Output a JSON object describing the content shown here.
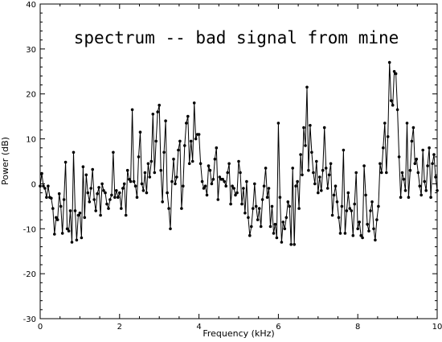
{
  "chart_data": {
    "type": "line",
    "title": "spectrum -- bad signal from mine",
    "xlabel": "Frequency (kHz)",
    "ylabel": "Power (dB)",
    "xlim": [
      0,
      10
    ],
    "ylim": [
      -30,
      40
    ],
    "grid": false,
    "legend": "none",
    "line_color": "#000000",
    "marker": "filled-circle",
    "x_ticks": [
      0,
      2,
      4,
      6,
      8,
      10
    ],
    "y_ticks": [
      -30,
      -20,
      -10,
      0,
      10,
      20,
      30,
      40
    ],
    "x_tick_labels": [
      "0",
      "2",
      "4",
      "6",
      "8",
      "10"
    ],
    "y_tick_labels": [
      "-30",
      "-20",
      "-10",
      "0",
      "10",
      "20",
      "30",
      "40"
    ],
    "series": [
      {
        "x": [
          0.0,
          0.04,
          0.08,
          0.12,
          0.16,
          0.2,
          0.24,
          0.28,
          0.32,
          0.36,
          0.4,
          0.44,
          0.48,
          0.52,
          0.56,
          0.6,
          0.64,
          0.68,
          0.72,
          0.76,
          0.8,
          0.84,
          0.88,
          0.92,
          0.96,
          1.0,
          1.04,
          1.08,
          1.12,
          1.16,
          1.2,
          1.24,
          1.28,
          1.32,
          1.36,
          1.4,
          1.44,
          1.48,
          1.52,
          1.56,
          1.6,
          1.64,
          1.68,
          1.72,
          1.76,
          1.8,
          1.84,
          1.88,
          1.92,
          1.96,
          2.0,
          2.04,
          2.08,
          2.12,
          2.16,
          2.2,
          2.24,
          2.28,
          2.32,
          2.36,
          2.4,
          2.44,
          2.48,
          2.52,
          2.56,
          2.6,
          2.64,
          2.68,
          2.72,
          2.76,
          2.8,
          2.84,
          2.88,
          2.92,
          2.96,
          3.0,
          3.04,
          3.08,
          3.12,
          3.16,
          3.2,
          3.24,
          3.28,
          3.32,
          3.36,
          3.4,
          3.44,
          3.48,
          3.52,
          3.56,
          3.6,
          3.64,
          3.68,
          3.72,
          3.76,
          3.8,
          3.84,
          3.88,
          3.92,
          3.96,
          4.0,
          4.04,
          4.08,
          4.12,
          4.16,
          4.2,
          4.24,
          4.28,
          4.32,
          4.36,
          4.4,
          4.44,
          4.48,
          4.52,
          4.56,
          4.6,
          4.64,
          4.68,
          4.72,
          4.76,
          4.8,
          4.84,
          4.88,
          4.92,
          4.96,
          5.0,
          5.04,
          5.08,
          5.12,
          5.16,
          5.2,
          5.24,
          5.28,
          5.32,
          5.36,
          5.4,
          5.44,
          5.48,
          5.52,
          5.56,
          5.6,
          5.64,
          5.68,
          5.72,
          5.76,
          5.8,
          5.84,
          5.88,
          5.92,
          5.96,
          6.0,
          6.04,
          6.08,
          6.12,
          6.16,
          6.2,
          6.24,
          6.28,
          6.32,
          6.36,
          6.4,
          6.44,
          6.48,
          6.52,
          6.56,
          6.6,
          6.64,
          6.68,
          6.72,
          6.76,
          6.8,
          6.84,
          6.88,
          6.92,
          6.96,
          7.0,
          7.04,
          7.08,
          7.12,
          7.16,
          7.2,
          7.24,
          7.28,
          7.32,
          7.36,
          7.4,
          7.44,
          7.48,
          7.52,
          7.56,
          7.6,
          7.64,
          7.68,
          7.72,
          7.76,
          7.8,
          7.84,
          7.88,
          7.92,
          7.96,
          8.0,
          8.04,
          8.08,
          8.12,
          8.16,
          8.2,
          8.24,
          8.28,
          8.32,
          8.36,
          8.4,
          8.44,
          8.48,
          8.52,
          8.56,
          8.6,
          8.64,
          8.68,
          8.72,
          8.76,
          8.8,
          8.84,
          8.88,
          8.92,
          8.96,
          9.0,
          9.04,
          9.08,
          9.12,
          9.16,
          9.2,
          9.24,
          9.28,
          9.32,
          9.36,
          9.4,
          9.44,
          9.48,
          9.52,
          9.56,
          9.6,
          9.64,
          9.68,
          9.72,
          9.76,
          9.8,
          9.84,
          9.88,
          9.92,
          9.96,
          10.0
        ],
        "values": [
          -0.5,
          2.3,
          -0.5,
          -1.0,
          -3.0,
          -0.5,
          -3.0,
          -3.2,
          -5.5,
          -11.2,
          -7.5,
          -8.0,
          -2.2,
          -5.0,
          -11.0,
          -3.5,
          4.8,
          -10.0,
          -10.5,
          -6.0,
          -13.0,
          7.0,
          -6.0,
          -12.5,
          -7.0,
          -6.5,
          -12.0,
          3.8,
          -7.5,
          2.0,
          -2.0,
          -4.0,
          -1.0,
          3.2,
          -3.5,
          -6.0,
          -2.2,
          -0.8,
          -7.0,
          0.0,
          -1.5,
          -2.0,
          -4.5,
          -5.5,
          -3.5,
          -2.5,
          7.0,
          -3.0,
          -1.5,
          -3.0,
          -2.0,
          -5.5,
          -1.0,
          0.0,
          -7.0,
          3.0,
          1.0,
          0.5,
          16.5,
          0.5,
          -0.5,
          -3.0,
          6.0,
          11.5,
          0.0,
          -1.5,
          2.5,
          -2.0,
          4.5,
          1.5,
          5.0,
          15.5,
          2.5,
          9.5,
          16.0,
          17.5,
          3.0,
          -4.0,
          7.0,
          14.0,
          -2.0,
          -5.5,
          -10.0,
          0.5,
          5.5,
          0.0,
          1.5,
          7.5,
          9.5,
          -5.5,
          -0.5,
          8.5,
          13.5,
          15.0,
          4.5,
          9.5,
          5.0,
          18.0,
          10.0,
          11.0,
          11.0,
          4.5,
          0.5,
          -1.0,
          -0.5,
          -2.5,
          4.0,
          3.0,
          0.0,
          1.0,
          5.5,
          8.0,
          -3.5,
          1.5,
          1.0,
          1.0,
          0.5,
          -0.5,
          2.5,
          4.5,
          -4.5,
          -0.5,
          -1.0,
          -2.5,
          -2.0,
          5.0,
          2.5,
          -4.5,
          -1.0,
          -6.5,
          0.5,
          -7.5,
          -11.5,
          -9.5,
          -5.5,
          0.0,
          -5.0,
          -8.0,
          -5.5,
          -9.5,
          -3.5,
          -0.5,
          3.5,
          -3.0,
          -1.0,
          -9.5,
          -5.0,
          -11.0,
          -9.0,
          -12.0,
          13.5,
          -3.0,
          -13.0,
          -8.5,
          -10.0,
          -7.5,
          -4.0,
          -5.0,
          -13.5,
          3.5,
          -13.5,
          -0.5,
          0.5,
          -5.5,
          6.5,
          2.0,
          12.5,
          8.5,
          21.5,
          3.0,
          13.0,
          7.0,
          2.5,
          0.0,
          5.0,
          -2.0,
          1.5,
          -1.5,
          3.0,
          12.5,
          3.5,
          -1.0,
          2.0,
          4.5,
          -7.0,
          -2.5,
          -0.5,
          -4.0,
          -7.5,
          -11.0,
          -5.0,
          7.5,
          -11.0,
          -6.0,
          -2.0,
          -5.5,
          -6.0,
          -11.5,
          -4.5,
          2.5,
          -10.0,
          -8.5,
          -11.5,
          -12.0,
          4.0,
          -2.5,
          -9.0,
          -10.5,
          -6.0,
          -4.0,
          -10.0,
          -12.5,
          -8.0,
          -5.0,
          4.5,
          2.5,
          8.0,
          13.5,
          2.5,
          10.5,
          27.0,
          18.5,
          17.5,
          25.0,
          24.5,
          16.5,
          6.0,
          -3.0,
          2.5,
          1.0,
          -1.5,
          13.5,
          -3.0,
          3.0,
          9.5,
          12.5,
          4.5,
          5.5,
          2.5,
          -0.5,
          -2.5,
          7.5,
          0.5,
          -1.5,
          4.0,
          8.0,
          -3.0,
          4.5,
          6.5,
          1.5,
          -1.5
        ]
      }
    ]
  }
}
